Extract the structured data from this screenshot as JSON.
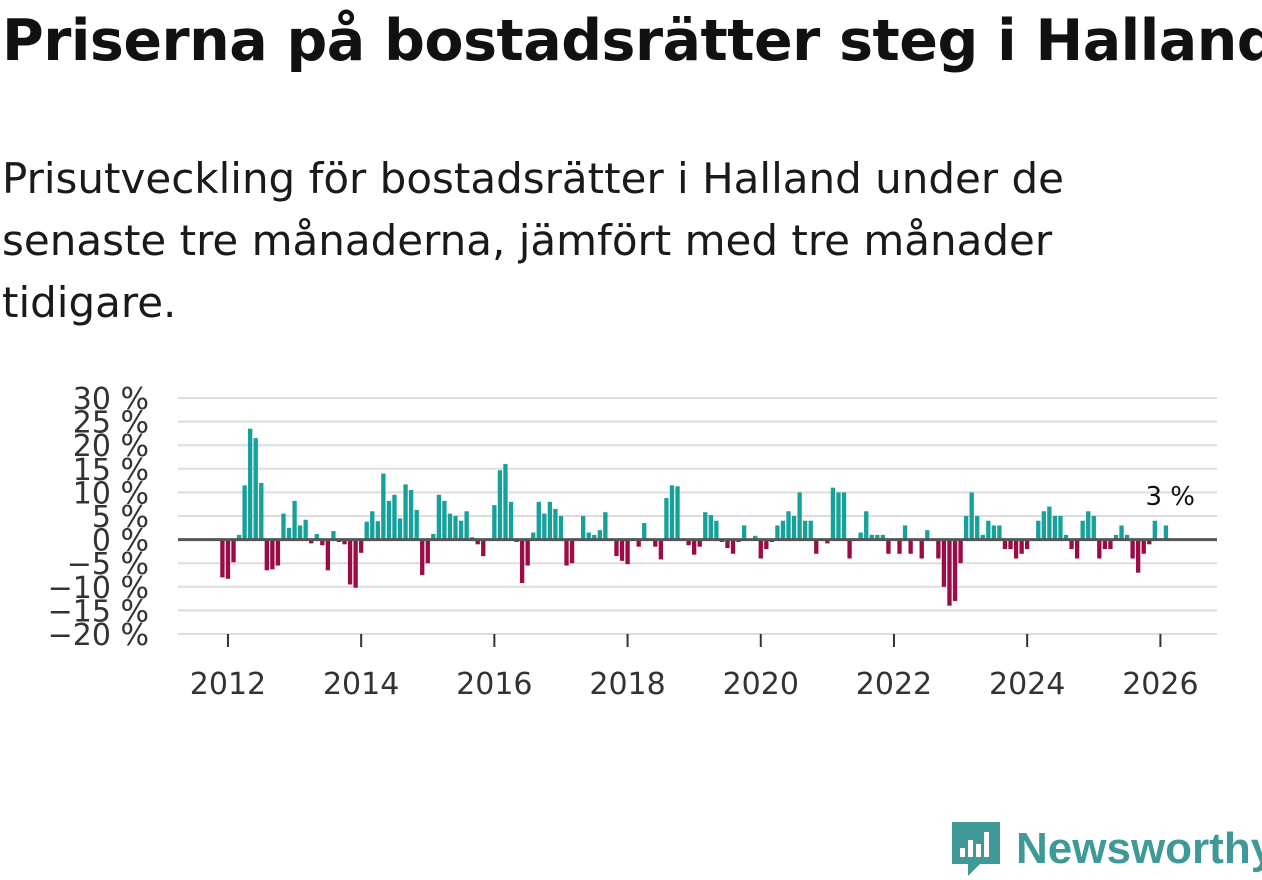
{
  "header": {
    "title": "Priserna på bostadsrätter steg i Halland",
    "subtitle": "Prisutveckling för bostadsrätter i Halland under de senaste tre månaderna, jämfört med tre månader tidigare."
  },
  "brand": {
    "name": "Newsworthy",
    "icon": "newsworthy-logo-icon",
    "color": "#3f9a97"
  },
  "chart_data": {
    "type": "bar",
    "title": "Priserna på bostadsrätter steg i Halland",
    "xlabel": "",
    "ylabel": "",
    "start_year": 2011.917,
    "step_years": 0.08333,
    "ylim": [
      -20,
      30
    ],
    "xlim": [
      2011.25,
      2026.85
    ],
    "grid": true,
    "legend": "none",
    "y_ticks": [
      30,
      25,
      20,
      15,
      10,
      5,
      0,
      -5,
      -10,
      -15,
      -20
    ],
    "y_tick_labels": [
      "30 %",
      "25 %",
      "20 %",
      "15 %",
      "10 %",
      "5 %",
      "0 %",
      "−5 %",
      "−10 %",
      "−15 %",
      "−20 %"
    ],
    "x_ticks": [
      2012,
      2014,
      2016,
      2018,
      2020,
      2022,
      2024,
      2026
    ],
    "x_tick_labels": [
      "2012",
      "2014",
      "2016",
      "2018",
      "2020",
      "2022",
      "2024",
      "2026"
    ],
    "colors": {
      "positive": "#17a19b",
      "negative": "#9b0b45",
      "grid": "#dddddd",
      "zero": "#555555"
    },
    "last_label": "3 %",
    "values": [
      -8,
      -8.3,
      -4.8,
      1,
      11.5,
      23.5,
      21.5,
      12,
      -6.5,
      -6.3,
      -5.5,
      5.5,
      2.5,
      8.2,
      3,
      4.2,
      -0.8,
      1.2,
      -1.2,
      -6.5,
      1.8,
      -0.5,
      -1,
      -9.5,
      -10.2,
      -2.8,
      3.8,
      6,
      3.9,
      14,
      8.2,
      9.5,
      4.5,
      11.7,
      10.5,
      6.3,
      -7.5,
      -5,
      1.2,
      9.5,
      8.2,
      5.5,
      5,
      4,
      6,
      0.5,
      -1,
      -3.5,
      0.2,
      7.3,
      14.7,
      16,
      8,
      -0.5,
      -9.2,
      -5.5,
      1.5,
      8,
      5.5,
      8,
      6.5,
      5,
      -5.5,
      -5,
      0,
      5,
      1.5,
      1,
      2,
      5.8,
      -0.2,
      -3.5,
      -4.5,
      -5.2,
      -0.2,
      -1.5,
      3.5,
      -0.2,
      -1.5,
      -4.2,
      8.8,
      11.5,
      11.3,
      -0.2,
      -1.2,
      -3.2,
      -1.5,
      5.8,
      5.2,
      4,
      -0.5,
      -1.8,
      -3,
      -0.5,
      3,
      -0.2,
      0.8,
      -4,
      -2,
      -0.5,
      3,
      4,
      6,
      5,
      10,
      4,
      4,
      -3,
      -0.2,
      -0.8,
      11,
      10,
      10,
      -4,
      -0.2,
      1.5,
      6,
      1,
      1,
      1,
      -3,
      -0.2,
      -3,
      3,
      -3,
      -0.2,
      -4,
      2,
      -0.2,
      -4,
      -10,
      -14,
      -13,
      -5,
      5,
      10,
      5,
      1,
      4,
      3,
      3,
      -2,
      -2,
      -4,
      -3,
      -2,
      -0.2,
      4,
      6,
      7,
      5,
      5,
      1,
      -2,
      -4,
      4,
      6,
      5,
      -4,
      -2,
      -2,
      1,
      3,
      1,
      -4,
      -7,
      -3,
      -1,
      4,
      -0.2,
      3
    ]
  }
}
